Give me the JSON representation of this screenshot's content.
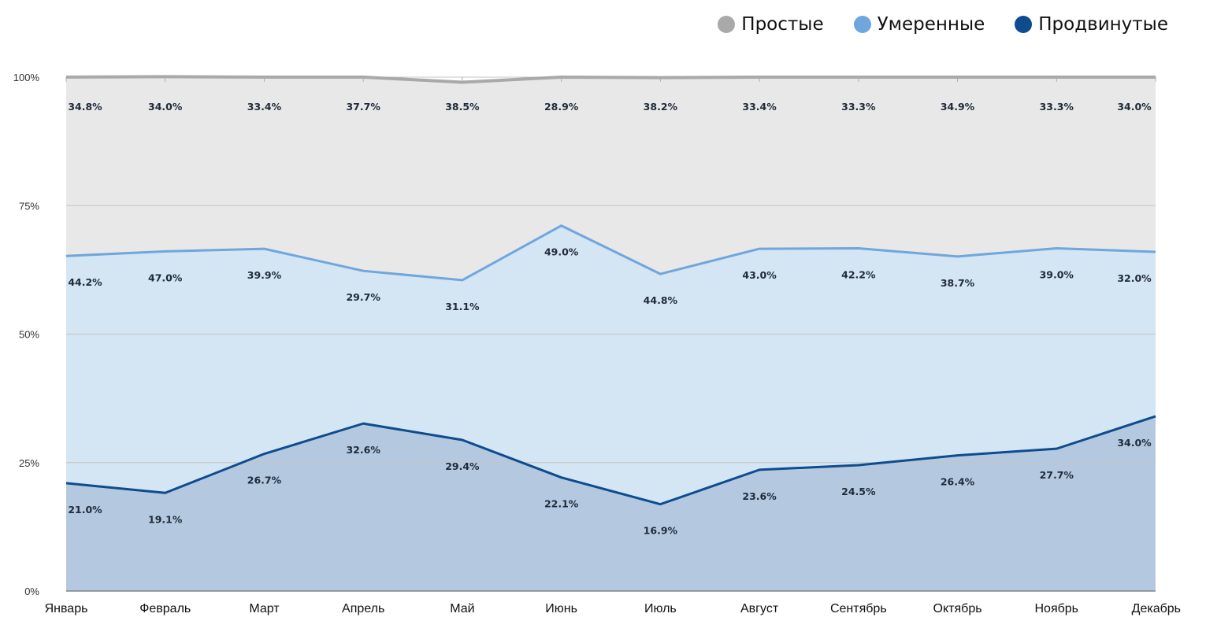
{
  "chart_data": {
    "type": "area",
    "stacked": "percent",
    "categories": [
      "Январь",
      "Февраль",
      "Март",
      "Апрель",
      "Май",
      "Июнь",
      "Июль",
      "Август",
      "Сентябрь",
      "Октябрь",
      "Ноябрь",
      "Декабрь"
    ],
    "y_ticks": [
      "0%",
      "25%",
      "50%",
      "75%",
      "100%"
    ],
    "ylim": [
      0,
      100
    ],
    "grid": true,
    "legend_position": "top-right",
    "series": [
      {
        "name": "Продвинутые",
        "color": "#0e4c8f",
        "fill": "#b4c9df",
        "values": [
          21.0,
          19.1,
          26.7,
          32.6,
          29.4,
          22.1,
          16.9,
          23.6,
          24.5,
          26.4,
          27.7,
          34.0
        ],
        "labels": [
          "21.0%",
          "19.1%",
          "26.7%",
          "32.6%",
          "29.4%",
          "22.1%",
          "16.9%",
          "23.6%",
          "24.5%",
          "26.4%",
          "27.7%",
          "34.0%"
        ]
      },
      {
        "name": "Умеренные",
        "color": "#6fa6dd",
        "fill": "#d4e5f4",
        "values": [
          44.2,
          47.0,
          39.9,
          29.7,
          31.1,
          49.0,
          44.8,
          43.0,
          42.2,
          38.7,
          39.0,
          32.0
        ],
        "labels": [
          "44.2%",
          "47.0%",
          "39.9%",
          "29.7%",
          "31.1%",
          "49.0%",
          "44.8%",
          "43.0%",
          "42.2%",
          "38.7%",
          "39.0%",
          "32.0%"
        ]
      },
      {
        "name": "Простые",
        "color": "#a9a9a9",
        "fill": "#e8e8e8",
        "values": [
          34.8,
          34.0,
          33.4,
          37.7,
          38.5,
          28.9,
          38.2,
          33.4,
          33.3,
          34.9,
          33.3,
          34.0
        ],
        "labels": [
          "34.8%",
          "34.0%",
          "33.4%",
          "37.7%",
          "38.5%",
          "28.9%",
          "38.2%",
          "33.4%",
          "33.3%",
          "34.9%",
          "33.3%",
          "34.0%"
        ]
      }
    ],
    "legend": [
      {
        "name": "Простые",
        "color": "#a9a9a9"
      },
      {
        "name": "Умеренные",
        "color": "#6fa6dd"
      },
      {
        "name": "Продвинутые",
        "color": "#0e4c8f"
      }
    ]
  }
}
